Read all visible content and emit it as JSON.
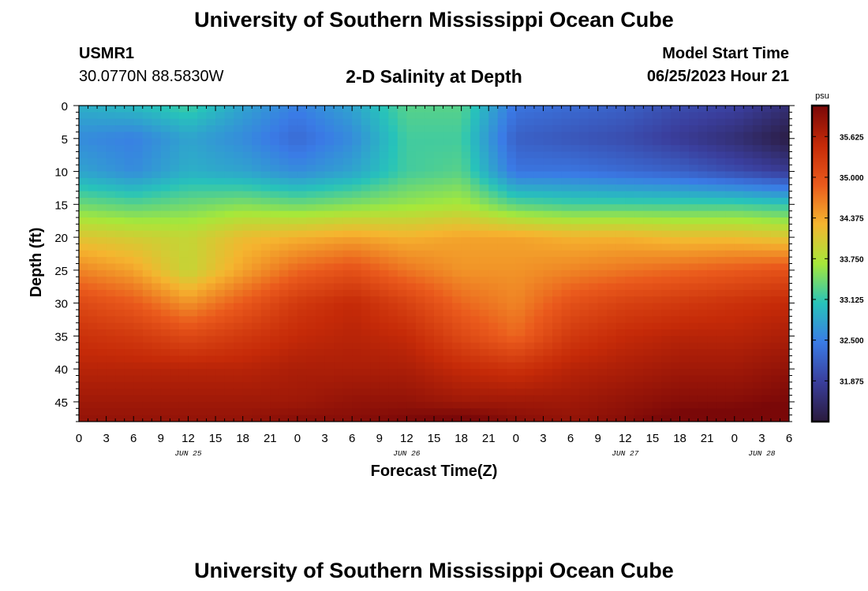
{
  "header": {
    "title": "University of Southern Mississippi Ocean Cube",
    "station_id": "USMR1",
    "coords": "30.0770N  88.5830W",
    "subtitle": "2-D Salinity at Depth",
    "start_label": "Model Start Time",
    "start_value": "06/25/2023 Hour 21"
  },
  "footer": {
    "title": "University of Southern Mississippi Ocean Cube"
  },
  "colors": {
    "scale": [
      "#2a1a3c",
      "#3a3e9c",
      "#3a7be6",
      "#27c3ba",
      "#a6e83a",
      "#f5b52f",
      "#ea5a1c",
      "#c52a08",
      "#7a0808"
    ],
    "frame": "#000000",
    "background": "#ffffff"
  },
  "chart_data": {
    "type": "heatmap",
    "title": "2-D Salinity at Depth",
    "xlabel": "Forecast Time(Z)",
    "ylabel": "Depth (ft)",
    "units": "psu",
    "x_ticks": [
      "0",
      "3",
      "6",
      "9",
      "12",
      "15",
      "18",
      "21",
      "0",
      "3",
      "6",
      "9",
      "12",
      "15",
      "18",
      "21",
      "0",
      "3",
      "6",
      "9",
      "12",
      "15",
      "18",
      "21",
      "0",
      "3",
      "6"
    ],
    "x_range_hours": [
      0,
      78
    ],
    "date_labels": [
      {
        "hour": 12,
        "label": "JUN 25"
      },
      {
        "hour": 36,
        "label": "JUN 26"
      },
      {
        "hour": 60,
        "label": "JUN 27"
      },
      {
        "hour": 75,
        "label": "JUN 28"
      }
    ],
    "y_ticks": [
      "0",
      "5",
      "10",
      "15",
      "20",
      "25",
      "30",
      "35",
      "40",
      "45"
    ],
    "y_range_ft": [
      0,
      48
    ],
    "colorbar": {
      "range": [
        31.25,
        36.1
      ],
      "tick_values": [
        31.875,
        32.5,
        33.125,
        33.75,
        34.375,
        35.0,
        35.625
      ],
      "tick_labels": [
        "31.875",
        "32.500",
        "33.125",
        "33.750",
        "34.375",
        "35.000",
        "35.625"
      ]
    },
    "grid_hours": [
      0,
      6,
      12,
      18,
      24,
      30,
      36,
      42,
      48,
      54,
      60,
      66,
      72,
      78
    ],
    "grid_depths": [
      0,
      5,
      10,
      15,
      20,
      25,
      30,
      35,
      40,
      45,
      48
    ],
    "salinity_psu": [
      [
        32.9,
        33.0,
        33.2,
        32.8,
        32.5,
        32.8,
        33.3,
        33.3,
        32.4,
        32.3,
        32.2,
        32.0,
        31.9,
        31.6
      ],
      [
        32.6,
        32.5,
        32.8,
        32.6,
        32.3,
        32.6,
        33.2,
        33.2,
        32.2,
        32.1,
        32.0,
        31.8,
        31.6,
        31.3
      ],
      [
        32.8,
        32.6,
        32.9,
        32.8,
        32.6,
        32.8,
        33.2,
        33.3,
        32.4,
        32.4,
        32.3,
        32.2,
        32.0,
        31.8
      ],
      [
        33.4,
        33.3,
        33.4,
        33.5,
        33.4,
        33.5,
        33.6,
        33.7,
        33.3,
        33.2,
        33.2,
        33.2,
        33.2,
        33.1
      ],
      [
        34.1,
        34.0,
        33.9,
        34.2,
        34.3,
        34.4,
        34.3,
        34.4,
        34.4,
        34.3,
        34.3,
        34.2,
        34.2,
        34.1
      ],
      [
        34.6,
        34.4,
        33.9,
        34.4,
        34.8,
        35.0,
        34.7,
        34.5,
        34.5,
        34.6,
        34.7,
        34.8,
        34.9,
        35.0
      ],
      [
        35.1,
        34.9,
        34.5,
        34.9,
        35.3,
        35.5,
        35.2,
        34.8,
        34.6,
        35.0,
        35.2,
        35.3,
        35.4,
        35.5
      ],
      [
        35.4,
        35.3,
        35.1,
        35.3,
        35.5,
        35.6,
        35.5,
        35.1,
        34.8,
        35.3,
        35.5,
        35.6,
        35.6,
        35.7
      ],
      [
        35.6,
        35.6,
        35.6,
        35.6,
        35.7,
        35.7,
        35.7,
        35.5,
        35.4,
        35.6,
        35.7,
        35.8,
        35.8,
        35.9
      ],
      [
        35.8,
        35.8,
        35.8,
        35.8,
        35.8,
        35.9,
        35.9,
        35.8,
        35.8,
        35.8,
        35.9,
        36.0,
        36.0,
        36.1
      ],
      [
        35.9,
        35.9,
        35.9,
        35.9,
        36.0,
        36.0,
        36.1,
        36.2,
        36.0,
        35.9,
        36.0,
        36.2,
        36.3,
        36.3
      ]
    ]
  }
}
